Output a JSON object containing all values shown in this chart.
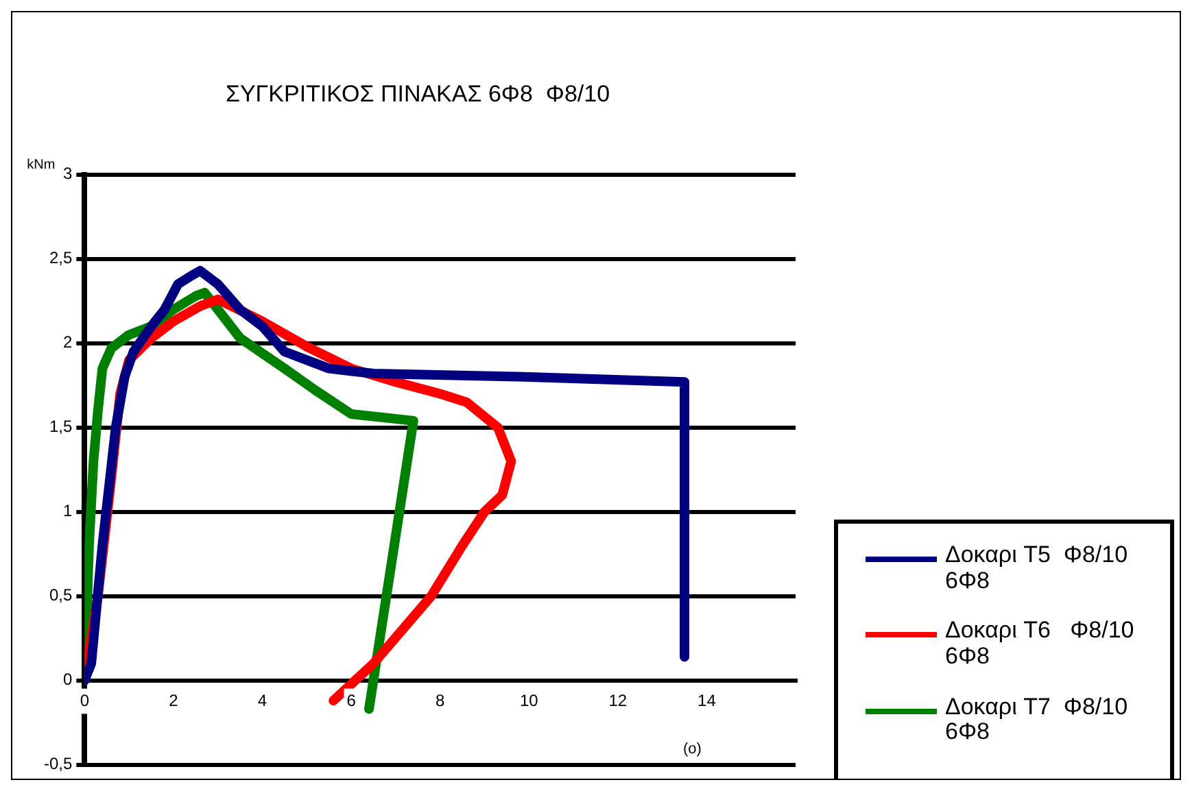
{
  "chart_data": {
    "type": "line",
    "title": "ΣΥΓΚΡΙΤΙΚΟΣ ΠΙΝΑΚΑΣ 6Φ8  Φ8/10",
    "xlabel": "(o)",
    "ylabel": "kNm",
    "xlim": [
      0,
      16
    ],
    "xticks": [
      0,
      2,
      4,
      6,
      8,
      10,
      12,
      14
    ],
    "ylim": [
      -0.5,
      3
    ],
    "yticks": [
      {
        "value": -0.5,
        "label": "-0,5"
      },
      0,
      {
        "value": 0.5,
        "label": "0,5"
      },
      1,
      {
        "value": 1.5,
        "label": "1,5"
      },
      2,
      {
        "value": 2.5,
        "label": "2,5"
      },
      3
    ],
    "grid": "y",
    "legend": "bottom right",
    "marker": "none",
    "line_style": "solid",
    "series": [
      {
        "name": "Δοκαρι T5  Φ8/10 6Φ8",
        "color": "#000080",
        "x": [
          0,
          0.15,
          0.4,
          0.7,
          0.9,
          1.1,
          1.5,
          1.8,
          2.1,
          2.4,
          2.6,
          3.0,
          3.5,
          4.0,
          4.5,
          5.5,
          6.5,
          10,
          13.5,
          13.5
        ],
        "values": [
          0,
          0.1,
          0.8,
          1.5,
          1.8,
          1.95,
          2.1,
          2.2,
          2.35,
          2.4,
          2.43,
          2.35,
          2.2,
          2.1,
          1.95,
          1.85,
          1.82,
          1.8,
          1.77,
          0.14
        ]
      },
      {
        "name": "Δοκαρι T6   Φ8/10 6Φ8",
        "color": "#ff0000",
        "x": [
          0,
          0.3,
          0.6,
          0.8,
          1,
          1.5,
          2,
          2.6,
          3,
          4,
          5,
          6,
          7,
          8,
          8.6,
          9.3,
          9.6,
          9.4,
          9,
          8.5,
          7.8,
          6.5,
          5.6
        ],
        "values": [
          0,
          0.5,
          1.2,
          1.7,
          1.9,
          2.03,
          2.13,
          2.22,
          2.26,
          2.13,
          1.98,
          1.85,
          1.77,
          1.7,
          1.65,
          1.5,
          1.3,
          1.1,
          1.0,
          0.8,
          0.5,
          0.1,
          -0.12
        ]
      },
      {
        "name": "Δοκαρι T7  Φ8/10 6Φ8",
        "color": "#008000",
        "x": [
          0,
          0.1,
          0.2,
          0.3,
          0.4,
          0.6,
          1,
          1.5,
          2,
          2.5,
          2.7,
          3,
          3.5,
          4.5,
          5.2,
          6,
          7.4,
          6.4
        ],
        "values": [
          0,
          0.8,
          1.3,
          1.6,
          1.85,
          1.97,
          2.05,
          2.1,
          2.2,
          2.28,
          2.3,
          2.2,
          2.03,
          1.85,
          1.72,
          1.58,
          1.54,
          -0.17
        ]
      }
    ]
  }
}
